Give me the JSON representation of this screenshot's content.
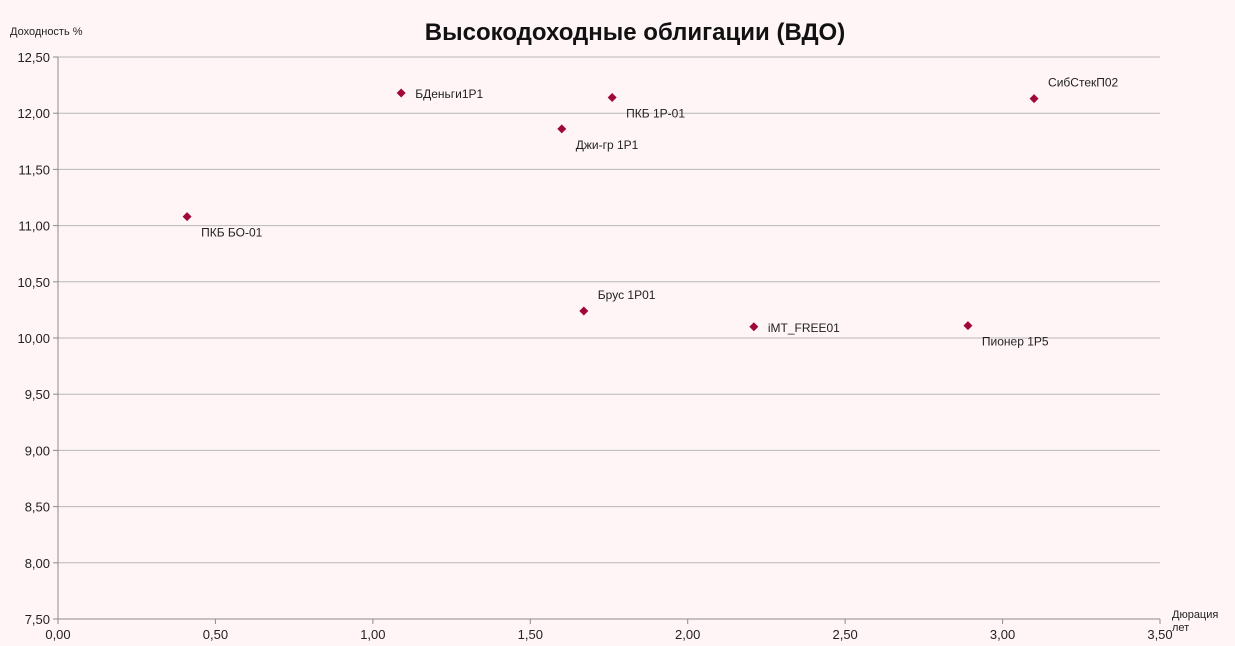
{
  "chart_data": {
    "type": "scatter",
    "title": "Высокодоходные облигации (ВДО)",
    "ylabel": "Доходность %",
    "xlabel_line1": "Дюрация",
    "xlabel_line2": "лет",
    "xlim": [
      0,
      3.5
    ],
    "ylim": [
      7.5,
      12.5
    ],
    "x_ticks": [
      "0,00",
      "0,50",
      "1,00",
      "1,50",
      "2,00",
      "2,50",
      "3,00",
      "3,50"
    ],
    "y_ticks": [
      "12,50",
      "12,00",
      "11,50",
      "11,00",
      "10,50",
      "10,00",
      "9,50",
      "9,00",
      "8,50",
      "8,00",
      "7,50"
    ],
    "grid": "horizontal",
    "marker_color": "#a0083c",
    "points": [
      {
        "label": "ПКБ БО-01",
        "x": 0.41,
        "y": 11.08,
        "label_pos": "below-right"
      },
      {
        "label": "БДеньги1Р1",
        "x": 1.09,
        "y": 12.18,
        "label_pos": "right"
      },
      {
        "label": "Джи-гр 1Р1",
        "x": 1.6,
        "y": 11.86,
        "label_pos": "below-right"
      },
      {
        "label": "ПКБ 1Р-01",
        "x": 1.76,
        "y": 12.14,
        "label_pos": "below-right"
      },
      {
        "label": "Брус 1Р01",
        "x": 1.67,
        "y": 10.24,
        "label_pos": "above-right"
      },
      {
        "label": "iMT_FREE01",
        "x": 2.21,
        "y": 10.1,
        "label_pos": "right"
      },
      {
        "label": "Пионер 1Р5",
        "x": 2.89,
        "y": 10.11,
        "label_pos": "below-right"
      },
      {
        "label": "СибСтекП02",
        "x": 3.1,
        "y": 12.13,
        "label_pos": "above-right"
      }
    ]
  }
}
